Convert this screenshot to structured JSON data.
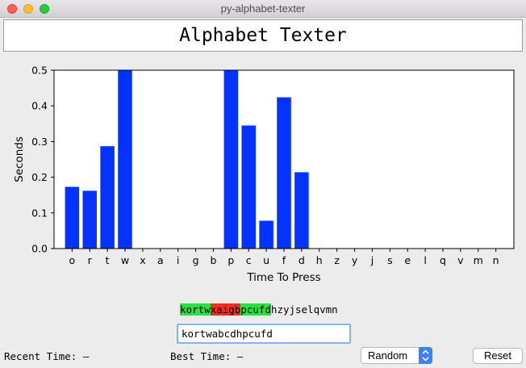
{
  "window": {
    "title": "py-alphabet-texter"
  },
  "app": {
    "title": "Alphabet Texter"
  },
  "chart_data": {
    "type": "bar",
    "xlabel": "Time To Press",
    "ylabel": "Seconds",
    "ylim": [
      0,
      0.5
    ],
    "yticks": [
      "0.0",
      "0.1",
      "0.2",
      "0.3",
      "0.4",
      "0.5"
    ],
    "bar_color": "#0433ff",
    "categories": [
      "o",
      "r",
      "t",
      "w",
      "x",
      "a",
      "i",
      "g",
      "b",
      "p",
      "c",
      "u",
      "f",
      "d",
      "h",
      "z",
      "y",
      "j",
      "s",
      "e",
      "l",
      "q",
      "v",
      "m",
      "n"
    ],
    "values": [
      0.173,
      0.162,
      0.287,
      0.5,
      0,
      0,
      0,
      0,
      0,
      0.5,
      0.345,
      0.078,
      0.424,
      0.214,
      0,
      0,
      0,
      0,
      0,
      0,
      0,
      0,
      0,
      0,
      0
    ]
  },
  "sequence": {
    "correct_part": "kortw",
    "wrong_part": "xaigb",
    "correct_part_2": "pcufd",
    "remaining": "hzyjselqvmn"
  },
  "input": {
    "value": "kortwabcdhpcufd"
  },
  "status": {
    "recent_time": "Recent Time: –",
    "best_time": "Best Time: –"
  },
  "controls": {
    "mode_value": "Random",
    "reset_label": "Reset"
  },
  "colors": {
    "correct": "#27e23f",
    "wrong": "#f52d20",
    "accent": "#3a82f7"
  }
}
